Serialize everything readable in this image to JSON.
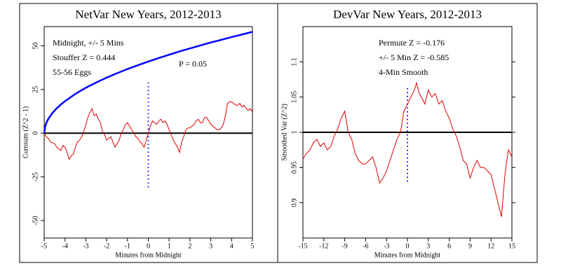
{
  "chart_data": [
    {
      "type": "line",
      "title": "NetVar New Years, 2012-2013",
      "xlabel": "Minutes from Midnight",
      "ylabel": "Cumsum (Z^2 - 1)",
      "xlim": [
        -5,
        5
      ],
      "xticks": [
        -5,
        -4,
        -3,
        -2,
        -1,
        0,
        1,
        2,
        3,
        4,
        5
      ],
      "ylim": [
        -60,
        61
      ],
      "yticks": [
        -50,
        -25,
        0,
        25,
        50
      ],
      "hline": 0,
      "vline": {
        "x": 0,
        "ymin": -31,
        "ymax": 29,
        "color": "#0000ff"
      },
      "annotations": [
        {
          "text": "Midnight, +/- 5 Mins",
          "color": "#e00000"
        },
        {
          "text": "Stouffer Z = 0.444",
          "color": "#e00000"
        },
        {
          "text": "55-56 Eggs",
          "color": "#e00000"
        },
        {
          "text": "P = 0.05",
          "color": "#0000ff"
        }
      ],
      "series": [
        {
          "color": "#0000ff",
          "width": 2.5,
          "x": [
            -5,
            -4.95,
            -4.9,
            -4.8,
            -4.6,
            -4.4,
            -4.2,
            -4,
            -3.5,
            -3,
            -2.5,
            -2,
            -1.5,
            -1,
            -0.5,
            0,
            0.5,
            1,
            1.5,
            2,
            2.5,
            3,
            3.5,
            4,
            4.5,
            5
          ],
          "values": [
            0,
            4,
            5.8,
            8.2,
            11.6,
            14.2,
            16.4,
            18.3,
            22.5,
            26,
            29,
            31.8,
            34.3,
            36.7,
            38.9,
            41,
            43,
            44.9,
            46.8,
            48.5,
            50.2,
            51.9,
            53.4,
            55,
            56.5,
            58
          ]
        },
        {
          "color": "#e00000",
          "width": 1,
          "x": [
            -5,
            -4.9,
            -4.8,
            -4.7,
            -4.5,
            -4.4,
            -4.2,
            -4.1,
            -4,
            -3.9,
            -3.8,
            -3.7,
            -3.6,
            -3.5,
            -3.4,
            -3.3,
            -3.2,
            -3.1,
            -3,
            -2.9,
            -2.8,
            -2.7,
            -2.6,
            -2.5,
            -2.4,
            -2.3,
            -2.2,
            -2.1,
            -2,
            -1.9,
            -1.8,
            -1.7,
            -1.6,
            -1.5,
            -1.4,
            -1.3,
            -1.2,
            -1.1,
            -1,
            -0.9,
            -0.8,
            -0.7,
            -0.6,
            -0.5,
            -0.4,
            -0.3,
            -0.2,
            -0.1,
            0,
            0.1,
            0.2,
            0.3,
            0.4,
            0.5,
            0.6,
            0.7,
            0.8,
            0.9,
            1,
            1.1,
            1.2,
            1.3,
            1.4,
            1.5,
            1.6,
            1.7,
            1.8,
            1.9,
            2,
            2.1,
            2.2,
            2.3,
            2.4,
            2.5,
            2.6,
            2.7,
            2.8,
            2.9,
            3,
            3.1,
            3.2,
            3.3,
            3.4,
            3.5,
            3.6,
            3.7,
            3.8,
            3.9,
            4,
            4.1,
            4.2,
            4.3,
            4.4,
            4.5,
            4.6,
            4.7,
            4.8,
            4.9,
            5
          ],
          "values": [
            0,
            -2,
            -3,
            -5,
            -6,
            -8,
            -10,
            -7,
            -8,
            -11,
            -15,
            -13,
            -12,
            -8,
            -5,
            -4,
            -2,
            1,
            5,
            9,
            12,
            14,
            10,
            11,
            8,
            6,
            1,
            -1,
            -4,
            -3,
            -2,
            -5,
            -8,
            -6,
            -4,
            0,
            2,
            5,
            6,
            4,
            2,
            0,
            -2,
            -3,
            -5,
            -6,
            -8,
            -4,
            0,
            4,
            7,
            6,
            5,
            7,
            8,
            6,
            7,
            5,
            2,
            -1,
            -4,
            -6,
            -8,
            -11,
            -5,
            -2,
            2,
            3,
            3,
            4,
            5,
            7,
            8,
            6,
            6,
            9,
            9,
            7,
            5,
            4,
            3,
            2,
            2,
            3,
            5,
            10,
            17,
            18,
            18,
            17,
            16,
            16,
            17,
            15,
            16,
            14,
            13,
            14,
            12
          ]
        }
      ]
    },
    {
      "type": "line",
      "title": "DevVar New Years, 2012-2013",
      "xlabel": "Minutes from Midnight",
      "ylabel": "Smoothed Var (Z^2)",
      "xlim": [
        -15,
        15
      ],
      "xticks": [
        -15,
        -12,
        -9,
        -6,
        -3,
        0,
        3,
        6,
        9,
        12,
        15
      ],
      "ylim": [
        0.85,
        1.15
      ],
      "yticks": [
        0.9,
        0.95,
        1,
        1.05,
        1.1
      ],
      "right_ticks": true,
      "hline": 1,
      "vline": {
        "x": 0,
        "ymin": 0.93,
        "ymax": 1.065,
        "color": "#0000ff"
      },
      "annotations": [
        {
          "text": "Permute Z = -0.176",
          "color": "#e00000"
        },
        {
          "text": "+/- 5 Min Z = -0.585",
          "color": "#e00000"
        },
        {
          "text": "4-Min Smooth",
          "color": "#e00000"
        }
      ],
      "series": [
        {
          "color": "#e00000",
          "width": 1,
          "x": [
            -15,
            -14.5,
            -14,
            -13.5,
            -13,
            -12.5,
            -12,
            -11.5,
            -11,
            -10.5,
            -10,
            -9.5,
            -9,
            -8.5,
            -8,
            -7.5,
            -7,
            -6.5,
            -6,
            -5.5,
            -5,
            -4.5,
            -4,
            -3.5,
            -3,
            -2.5,
            -2,
            -1.5,
            -1,
            -0.5,
            0,
            0.5,
            1,
            1.3,
            1.7,
            2,
            2.5,
            3,
            3.5,
            4,
            4.5,
            5,
            5.5,
            6,
            6.5,
            7,
            7.5,
            8,
            8.5,
            9,
            9.5,
            10,
            10.5,
            11,
            11.5,
            12,
            12.5,
            13,
            13.5,
            14,
            14.5,
            15
          ],
          "values": [
            0.962,
            0.97,
            0.975,
            0.985,
            0.99,
            0.98,
            0.985,
            0.975,
            0.98,
            0.995,
            1.005,
            1.02,
            1.03,
            1.0,
            0.99,
            0.97,
            0.96,
            0.955,
            0.955,
            0.96,
            0.965,
            0.95,
            0.928,
            0.935,
            0.945,
            0.96,
            0.975,
            0.99,
            1.0,
            1.03,
            1.04,
            1.05,
            1.06,
            1.07,
            1.055,
            1.05,
            1.04,
            1.06,
            1.05,
            1.055,
            1.04,
            1.045,
            1.03,
            1.02,
            1.005,
            0.995,
            0.98,
            0.96,
            0.955,
            0.935,
            0.95,
            0.96,
            0.95,
            0.95,
            0.945,
            0.94,
            0.92,
            0.9,
            0.88,
            0.94,
            0.975,
            0.965
          ]
        }
      ]
    }
  ]
}
